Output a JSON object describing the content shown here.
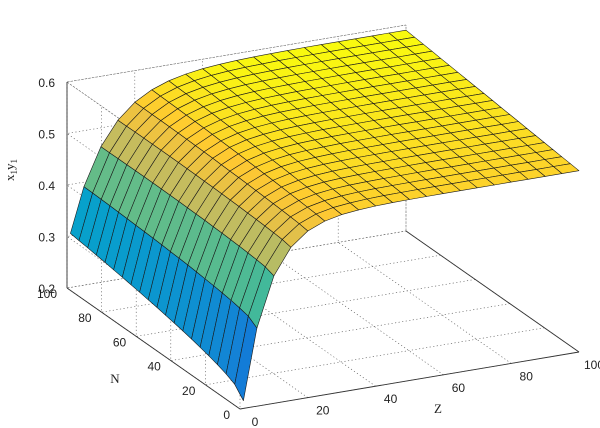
{
  "chart_data": {
    "type": "surface",
    "title": "",
    "xlabel": "Z",
    "ylabel": "N",
    "zlabel_base": "x",
    "zlabel_sub1": "1",
    "zlabel_mid": "y",
    "zlabel_sub2": "1",
    "x_ticks": [
      "0",
      "20",
      "40",
      "60",
      "80",
      "100"
    ],
    "y_ticks": [
      "0",
      "20",
      "40",
      "60",
      "80",
      "100"
    ],
    "z_ticks": [
      "0.2",
      "0.3",
      "0.4",
      "0.5",
      "0.6"
    ],
    "xlim": [
      0,
      100
    ],
    "ylim": [
      0,
      100
    ],
    "zlim": [
      0.2,
      0.6
    ],
    "grid": true,
    "colormap": [
      "#352a87",
      "#0f5cdd",
      "#1481d6",
      "#06a4ca",
      "#2eb7a4",
      "#87bf77",
      "#d1bb59",
      "#fec832",
      "#f9fb0e"
    ],
    "x_grid": [
      1,
      5,
      10,
      15,
      20,
      25,
      30,
      35,
      40,
      45,
      50,
      55,
      60,
      65,
      70,
      75,
      80,
      85,
      90,
      95,
      100
    ],
    "y_grid": [
      0,
      5,
      10,
      15,
      20,
      25,
      30,
      35,
      40,
      45,
      50,
      55,
      60,
      65,
      70,
      75,
      80,
      85,
      90,
      95,
      100
    ],
    "z_model": {
      "floor": 0.215,
      "front_end": 0.552,
      "back_end": 0.59,
      "back_start": 0.305,
      "rate_front": 0.13,
      "rate_back": 0.09
    }
  }
}
